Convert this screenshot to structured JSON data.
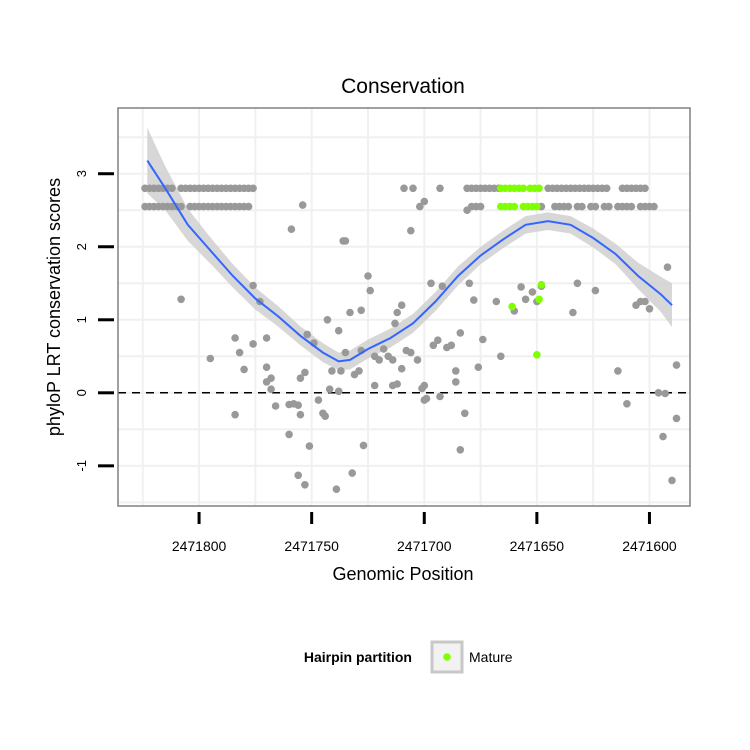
{
  "chart_data": {
    "type": "scatter",
    "title": "Conservation",
    "xlabel": "Genomic Position",
    "ylabel": "phyloP LRT conservation scores",
    "x_reversed": true,
    "xlim": [
      2471582,
      2471836
    ],
    "ylim": [
      -1.55,
      3.9
    ],
    "x_ticks": [
      2471800,
      2471750,
      2471700,
      2471650,
      2471600
    ],
    "x_tick_labels": [
      "2471800",
      "2471750",
      "2471700",
      "2471650",
      "2471600"
    ],
    "y_ticks": [
      -1,
      0,
      1,
      2,
      3
    ],
    "y_tick_labels": [
      "-1",
      "0",
      "1",
      "2",
      "3"
    ],
    "reference_line": {
      "y": 0,
      "style": "dashed"
    },
    "legend": {
      "title": "Hairpin partition",
      "entries": [
        {
          "label": "Mature",
          "color": "#7fff00"
        }
      ],
      "position": "bottom"
    },
    "colors": {
      "other": "#999999",
      "mature": "#7fff00",
      "smooth": "#3366ff",
      "band": "#d0d0d0",
      "panel": "#ffffff",
      "grid": "#f0f0f0",
      "border": "#808080"
    },
    "series": [
      {
        "name": "Other",
        "points": [
          [
            2471824,
            2.8
          ],
          [
            2471822,
            2.8
          ],
          [
            2471820,
            2.8
          ],
          [
            2471818,
            2.8
          ],
          [
            2471816,
            2.8
          ],
          [
            2471814,
            2.8
          ],
          [
            2471812,
            2.8
          ],
          [
            2471808,
            2.8
          ],
          [
            2471806,
            2.8
          ],
          [
            2471804,
            2.8
          ],
          [
            2471802,
            2.8
          ],
          [
            2471800,
            2.8
          ],
          [
            2471798,
            2.8
          ],
          [
            2471796,
            2.8
          ],
          [
            2471794,
            2.8
          ],
          [
            2471792,
            2.8
          ],
          [
            2471790,
            2.8
          ],
          [
            2471788,
            2.8
          ],
          [
            2471786,
            2.8
          ],
          [
            2471784,
            2.8
          ],
          [
            2471782,
            2.8
          ],
          [
            2471780,
            2.8
          ],
          [
            2471778,
            2.8
          ],
          [
            2471776,
            2.8
          ],
          [
            2471824,
            2.55
          ],
          [
            2471822,
            2.55
          ],
          [
            2471820,
            2.55
          ],
          [
            2471818,
            2.55
          ],
          [
            2471816,
            2.55
          ],
          [
            2471814,
            2.55
          ],
          [
            2471812,
            2.55
          ],
          [
            2471810,
            2.55
          ],
          [
            2471808,
            2.55
          ],
          [
            2471804,
            2.55
          ],
          [
            2471802,
            2.55
          ],
          [
            2471800,
            2.55
          ],
          [
            2471798,
            2.55
          ],
          [
            2471796,
            2.55
          ],
          [
            2471794,
            2.55
          ],
          [
            2471792,
            2.55
          ],
          [
            2471790,
            2.55
          ],
          [
            2471788,
            2.55
          ],
          [
            2471786,
            2.55
          ],
          [
            2471784,
            2.55
          ],
          [
            2471782,
            2.55
          ],
          [
            2471780,
            2.55
          ],
          [
            2471778,
            2.55
          ],
          [
            2471709,
            2.8
          ],
          [
            2471705,
            2.8
          ],
          [
            2471693,
            2.8
          ],
          [
            2471681,
            2.8
          ],
          [
            2471679,
            2.8
          ],
          [
            2471677,
            2.8
          ],
          [
            2471675,
            2.8
          ],
          [
            2471673,
            2.8
          ],
          [
            2471671,
            2.8
          ],
          [
            2471669,
            2.8
          ],
          [
            2471667,
            2.8
          ],
          [
            2471645,
            2.8
          ],
          [
            2471643,
            2.8
          ],
          [
            2471641,
            2.8
          ],
          [
            2471639,
            2.8
          ],
          [
            2471637,
            2.8
          ],
          [
            2471635,
            2.8
          ],
          [
            2471633,
            2.8
          ],
          [
            2471631,
            2.8
          ],
          [
            2471629,
            2.8
          ],
          [
            2471627,
            2.8
          ],
          [
            2471625,
            2.8
          ],
          [
            2471623,
            2.8
          ],
          [
            2471621,
            2.8
          ],
          [
            2471619,
            2.8
          ],
          [
            2471612,
            2.8
          ],
          [
            2471610,
            2.8
          ],
          [
            2471608,
            2.8
          ],
          [
            2471606,
            2.8
          ],
          [
            2471604,
            2.8
          ],
          [
            2471602,
            2.8
          ],
          [
            2471679,
            2.55
          ],
          [
            2471677,
            2.55
          ],
          [
            2471675,
            2.55
          ],
          [
            2471648,
            2.55
          ],
          [
            2471642,
            2.55
          ],
          [
            2471640,
            2.55
          ],
          [
            2471638,
            2.55
          ],
          [
            2471636,
            2.55
          ],
          [
            2471632,
            2.55
          ],
          [
            2471630,
            2.55
          ],
          [
            2471626,
            2.55
          ],
          [
            2471624,
            2.55
          ],
          [
            2471620,
            2.55
          ],
          [
            2471618,
            2.55
          ],
          [
            2471614,
            2.55
          ],
          [
            2471612,
            2.55
          ],
          [
            2471610,
            2.55
          ],
          [
            2471608,
            2.55
          ],
          [
            2471604,
            2.55
          ],
          [
            2471602,
            2.55
          ],
          [
            2471600,
            2.55
          ],
          [
            2471598,
            2.55
          ],
          [
            2471681,
            2.5
          ],
          [
            2471754,
            2.57
          ],
          [
            2471700,
            2.62
          ],
          [
            2471702,
            2.55
          ],
          [
            2471706,
            2.22
          ],
          [
            2471736,
            2.08
          ],
          [
            2471735,
            2.08
          ],
          [
            2471759,
            2.24
          ],
          [
            2471776,
            1.47
          ],
          [
            2471773,
            1.25
          ],
          [
            2471808,
            1.28
          ],
          [
            2471770,
            0.75
          ],
          [
            2471784,
            0.75
          ],
          [
            2471776,
            0.67
          ],
          [
            2471782,
            0.55
          ],
          [
            2471795,
            0.47
          ],
          [
            2471752,
            0.8
          ],
          [
            2471749,
            0.68
          ],
          [
            2471743,
            1.0
          ],
          [
            2471753,
            0.28
          ],
          [
            2471755,
            0.2
          ],
          [
            2471760,
            -0.16
          ],
          [
            2471758,
            -0.15
          ],
          [
            2471756,
            -0.17
          ],
          [
            2471755,
            -0.3
          ],
          [
            2471760,
            -0.57
          ],
          [
            2471751,
            -0.73
          ],
          [
            2471756,
            -1.13
          ],
          [
            2471753,
            -1.26
          ],
          [
            2471739,
            -1.32
          ],
          [
            2471745,
            -0.28
          ],
          [
            2471747,
            -0.1
          ],
          [
            2471744,
            -0.32
          ],
          [
            2471742,
            0.05
          ],
          [
            2471741,
            0.3
          ],
          [
            2471738,
            0.02
          ],
          [
            2471737,
            0.3
          ],
          [
            2471733,
            1.1
          ],
          [
            2471731,
            0.25
          ],
          [
            2471729,
            0.3
          ],
          [
            2471728,
            1.13
          ],
          [
            2471727,
            -0.72
          ],
          [
            2471725,
            1.6
          ],
          [
            2471724,
            1.4
          ],
          [
            2471722,
            0.5
          ],
          [
            2471720,
            0.45
          ],
          [
            2471718,
            0.6
          ],
          [
            2471716,
            0.5
          ],
          [
            2471714,
            0.45
          ],
          [
            2471713,
            0.95
          ],
          [
            2471712,
            1.1
          ],
          [
            2471710,
            1.2
          ],
          [
            2471710,
            0.33
          ],
          [
            2471708,
            0.58
          ],
          [
            2471706,
            0.55
          ],
          [
            2471703,
            0.45
          ],
          [
            2471701,
            0.06
          ],
          [
            2471699,
            -0.08
          ],
          [
            2471697,
            1.5
          ],
          [
            2471696,
            0.65
          ],
          [
            2471694,
            0.72
          ],
          [
            2471692,
            1.46
          ],
          [
            2471690,
            0.62
          ],
          [
            2471688,
            0.65
          ],
          [
            2471686,
            0.3
          ],
          [
            2471684,
            0.82
          ],
          [
            2471682,
            -0.28
          ],
          [
            2471680,
            1.5
          ],
          [
            2471678,
            1.27
          ],
          [
            2471676,
            0.35
          ],
          [
            2471674,
            0.73
          ],
          [
            2471732,
            -1.1
          ],
          [
            2471722,
            0.1
          ],
          [
            2471714,
            0.1
          ],
          [
            2471712,
            0.12
          ],
          [
            2471686,
            0.15
          ],
          [
            2471684,
            -0.78
          ],
          [
            2471700,
            0.1
          ],
          [
            2471700,
            -0.1
          ],
          [
            2471693,
            -0.05
          ],
          [
            2471768,
            0.05
          ],
          [
            2471770,
            0.15
          ],
          [
            2471766,
            -0.18
          ],
          [
            2471770,
            0.35
          ],
          [
            2471768,
            0.2
          ],
          [
            2471780,
            0.32
          ],
          [
            2471784,
            -0.3
          ],
          [
            2471728,
            0.58
          ],
          [
            2471738,
            0.85
          ],
          [
            2471735,
            0.55
          ],
          [
            2471660,
            1.12
          ],
          [
            2471657,
            1.45
          ],
          [
            2471655,
            1.28
          ],
          [
            2471652,
            1.38
          ],
          [
            2471666,
            0.5
          ],
          [
            2471668,
            1.25
          ],
          [
            2471650,
            1.25
          ],
          [
            2471648,
            1.46
          ],
          [
            2471632,
            1.5
          ],
          [
            2471634,
            1.1
          ],
          [
            2471624,
            1.4
          ],
          [
            2471614,
            0.3
          ],
          [
            2471610,
            -0.15
          ],
          [
            2471606,
            1.2
          ],
          [
            2471604,
            1.25
          ],
          [
            2471602,
            1.25
          ],
          [
            2471600,
            1.15
          ],
          [
            2471596,
            0.0
          ],
          [
            2471594,
            -0.6
          ],
          [
            2471593,
            -0.01
          ],
          [
            2471592,
            1.72
          ],
          [
            2471590,
            -1.2
          ],
          [
            2471588,
            0.38
          ],
          [
            2471588,
            -0.35
          ]
        ]
      },
      {
        "name": "Mature",
        "points": [
          [
            2471666,
            2.8
          ],
          [
            2471664,
            2.8
          ],
          [
            2471662,
            2.8
          ],
          [
            2471660,
            2.8
          ],
          [
            2471658,
            2.8
          ],
          [
            2471656,
            2.8
          ],
          [
            2471653,
            2.8
          ],
          [
            2471651,
            2.8
          ],
          [
            2471649,
            2.8
          ],
          [
            2471666,
            2.55
          ],
          [
            2471664,
            2.55
          ],
          [
            2471662,
            2.55
          ],
          [
            2471660,
            2.55
          ],
          [
            2471656,
            2.55
          ],
          [
            2471654,
            2.55
          ],
          [
            2471652,
            2.55
          ],
          [
            2471650,
            2.55
          ],
          [
            2471661,
            1.18
          ],
          [
            2471649,
            1.28
          ],
          [
            2471648,
            1.48
          ],
          [
            2471650,
            0.52
          ]
        ]
      }
    ],
    "smooth": {
      "x": [
        2471823,
        2471815,
        2471805,
        2471795,
        2471785,
        2471775,
        2471765,
        2471755,
        2471745,
        2471738,
        2471733,
        2471725,
        2471715,
        2471705,
        2471695,
        2471685,
        2471675,
        2471665,
        2471655,
        2471645,
        2471635,
        2471625,
        2471615,
        2471605,
        2471595,
        2471590
      ],
      "y": [
        3.18,
        2.8,
        2.3,
        1.95,
        1.6,
        1.29,
        1.05,
        0.78,
        0.55,
        0.43,
        0.45,
        0.6,
        0.75,
        0.95,
        1.25,
        1.6,
        1.88,
        2.1,
        2.3,
        2.35,
        2.3,
        2.12,
        1.9,
        1.6,
        1.35,
        1.2
      ],
      "se": [
        0.45,
        0.3,
        0.22,
        0.18,
        0.16,
        0.15,
        0.14,
        0.13,
        0.13,
        0.12,
        0.13,
        0.13,
        0.13,
        0.13,
        0.13,
        0.13,
        0.12,
        0.12,
        0.12,
        0.12,
        0.12,
        0.13,
        0.14,
        0.18,
        0.24,
        0.3
      ]
    }
  }
}
